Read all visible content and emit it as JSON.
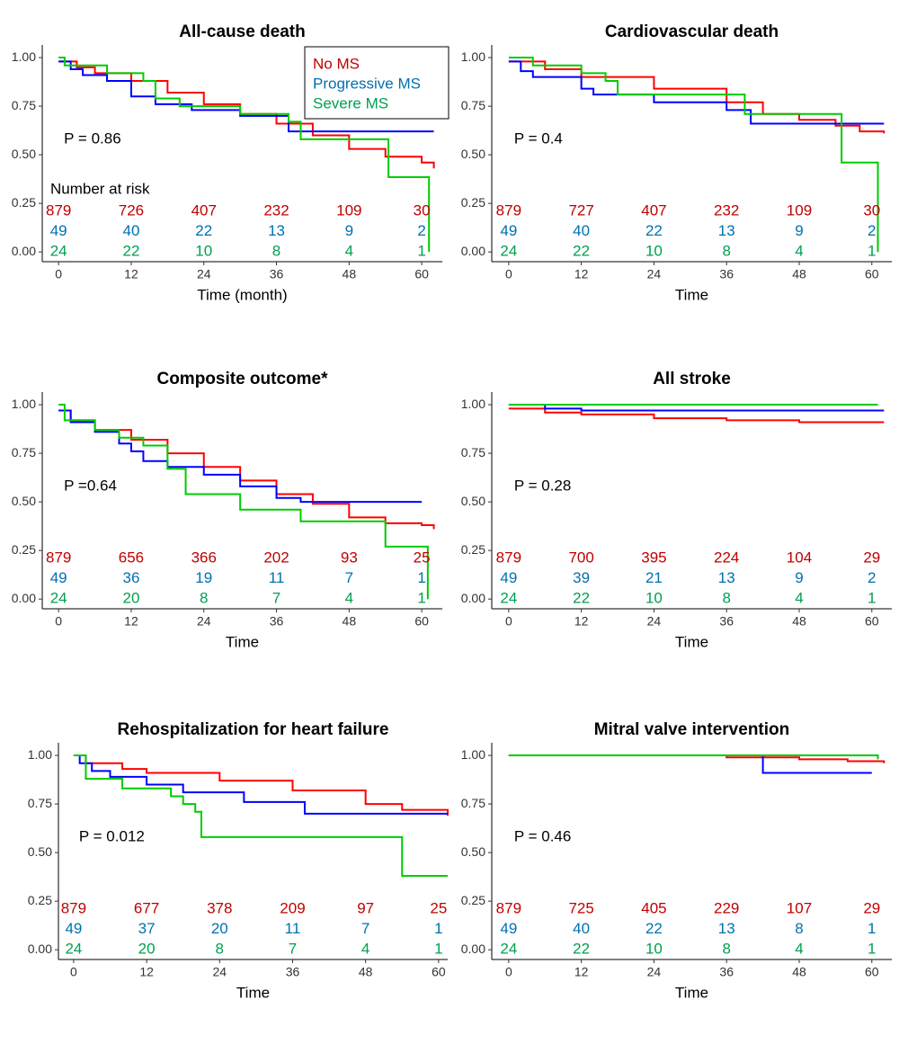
{
  "chart_data": [
    {
      "type": "step",
      "title": "All-cause death",
      "xlabel": "Time (month)",
      "p_text": "P = 0.86",
      "risk_title": "Number at risk",
      "legend": "top right",
      "xlim": [
        -2.7,
        63.4
      ],
      "ylim": [
        -0.05,
        1.065
      ],
      "xticks": [
        0,
        12,
        24,
        36,
        48,
        60
      ],
      "yticks": [
        {
          "value": 0,
          "label": "0.00"
        },
        0.25,
        {
          "value": 0.5,
          "label": "0.50"
        },
        0.75,
        {
          "value": 1,
          "label": "1.00"
        }
      ],
      "series": [
        {
          "name": "No MS",
          "color": "#ff0000",
          "label_color": "#c00000",
          "x": [
            0,
            3,
            6,
            12,
            18,
            24,
            30,
            36,
            42,
            48,
            54,
            60,
            62
          ],
          "values": [
            0.98,
            0.95,
            0.92,
            0.88,
            0.82,
            0.76,
            0.71,
            0.66,
            0.6,
            0.53,
            0.49,
            0.46,
            0.43
          ],
          "at_risk": [
            879,
            726,
            407,
            232,
            109,
            30
          ]
        },
        {
          "name": "Progressive MS",
          "color": "#0000ff",
          "label_color": "#0070b0",
          "x": [
            0,
            2,
            4,
            8,
            12,
            16,
            22,
            30,
            38,
            62
          ],
          "values": [
            0.98,
            0.94,
            0.91,
            0.88,
            0.8,
            0.76,
            0.73,
            0.7,
            0.62,
            0.62
          ],
          "at_risk": [
            49,
            40,
            22,
            13,
            9,
            2
          ]
        },
        {
          "name": "Severe MS",
          "color": "#00cc00",
          "label_color": "#00a050",
          "x": [
            0,
            1,
            8,
            14,
            16,
            20,
            30,
            38,
            40,
            54.5,
            61.2
          ],
          "values": [
            1,
            0.96,
            0.92,
            0.88,
            0.79,
            0.75,
            0.71,
            0.67,
            0.58,
            0.385,
            0
          ],
          "at_risk": [
            24,
            22,
            10,
            8,
            4,
            1
          ]
        }
      ]
    },
    {
      "type": "step",
      "title": "Cardiovascular death",
      "xlabel": "Time",
      "p_text": "P = 0.4",
      "xlim": [
        -2.8,
        63.3
      ],
      "ylim": [
        -0.05,
        1.065
      ],
      "xticks": [
        0,
        12,
        24,
        36,
        48,
        60
      ],
      "yticks": [
        {
          "value": 0,
          "label": "0.00"
        },
        0.25,
        {
          "value": 0.5,
          "label": "0.50"
        },
        0.75,
        {
          "value": 1,
          "label": "1.00"
        }
      ],
      "series": [
        {
          "color": "#ff0000",
          "label_color": "#c00000",
          "x": [
            0,
            6,
            12,
            24,
            36,
            42,
            48,
            54,
            58,
            62
          ],
          "values": [
            0.98,
            0.94,
            0.9,
            0.84,
            0.77,
            0.71,
            0.68,
            0.65,
            0.62,
            0.61
          ],
          "at_risk": [
            879,
            727,
            407,
            232,
            109,
            30
          ]
        },
        {
          "color": "#0000ff",
          "label_color": "#0070b0",
          "x": [
            0,
            2,
            4,
            12,
            14,
            24,
            36,
            40,
            62
          ],
          "values": [
            0.98,
            0.93,
            0.9,
            0.84,
            0.81,
            0.77,
            0.73,
            0.66,
            0.66
          ],
          "at_risk": [
            49,
            40,
            22,
            13,
            9,
            2
          ]
        },
        {
          "color": "#00cc00",
          "label_color": "#00a050",
          "x": [
            0,
            4,
            12,
            16,
            18,
            39,
            55,
            61
          ],
          "values": [
            1,
            0.96,
            0.92,
            0.88,
            0.81,
            0.71,
            0.46,
            0
          ],
          "at_risk": [
            24,
            22,
            10,
            8,
            4,
            1
          ]
        }
      ]
    },
    {
      "type": "step",
      "title": "Composite outcome*",
      "xlabel": "Time",
      "p_text": "P =0.64",
      "xlim": [
        -2.7,
        63.4
      ],
      "ylim": [
        -0.05,
        1.065
      ],
      "xticks": [
        0,
        12,
        24,
        36,
        48,
        60
      ],
      "yticks": [
        {
          "value": 0,
          "label": "0.00"
        },
        0.25,
        {
          "value": 0.5,
          "label": "0.50"
        },
        0.75,
        {
          "value": 1,
          "label": "1.00"
        }
      ],
      "series": [
        {
          "color": "#ff0000",
          "label_color": "#c00000",
          "x": [
            0,
            2,
            6,
            12,
            18,
            24,
            30,
            36,
            42,
            48,
            54,
            60,
            62
          ],
          "values": [
            0.97,
            0.92,
            0.87,
            0.82,
            0.75,
            0.68,
            0.61,
            0.54,
            0.49,
            0.42,
            0.39,
            0.38,
            0.36
          ],
          "at_risk": [
            879,
            656,
            366,
            202,
            93,
            25
          ]
        },
        {
          "color": "#0000ff",
          "label_color": "#0070b0",
          "x": [
            0,
            2,
            6,
            10,
            12,
            14,
            18,
            24,
            30,
            36,
            40,
            60
          ],
          "values": [
            0.97,
            0.91,
            0.86,
            0.8,
            0.76,
            0.71,
            0.68,
            0.64,
            0.58,
            0.52,
            0.5,
            0.5
          ],
          "at_risk": [
            49,
            36,
            19,
            11,
            7,
            1
          ]
        },
        {
          "color": "#00cc00",
          "label_color": "#00a050",
          "x": [
            0,
            1,
            6,
            10,
            14,
            18,
            21,
            30,
            40,
            54,
            61
          ],
          "values": [
            1,
            0.92,
            0.87,
            0.83,
            0.79,
            0.67,
            0.54,
            0.46,
            0.4,
            0.27,
            0
          ],
          "at_risk": [
            24,
            20,
            8,
            7,
            4,
            1
          ]
        }
      ]
    },
    {
      "type": "step",
      "title": "All stroke",
      "xlabel": "Time",
      "p_text": "P = 0.28",
      "xlim": [
        -2.8,
        63.3
      ],
      "ylim": [
        -0.05,
        1.065
      ],
      "xticks": [
        0,
        12,
        24,
        36,
        48,
        60
      ],
      "yticks": [
        {
          "value": 0,
          "label": "0.00"
        },
        0.25,
        {
          "value": 0.5,
          "label": "0.50"
        },
        0.75,
        {
          "value": 1,
          "label": "1.00"
        }
      ],
      "series": [
        {
          "color": "#ff0000",
          "label_color": "#c00000",
          "x": [
            0,
            6,
            12,
            24,
            36,
            48,
            62
          ],
          "values": [
            0.98,
            0.96,
            0.95,
            0.93,
            0.92,
            0.91,
            0.91
          ],
          "at_risk": [
            879,
            700,
            395,
            224,
            104,
            29
          ]
        },
        {
          "color": "#0000ff",
          "label_color": "#0070b0",
          "x": [
            0,
            6,
            12,
            62
          ],
          "values": [
            1,
            0.98,
            0.97,
            0.97
          ],
          "at_risk": [
            49,
            39,
            21,
            13,
            9,
            2
          ]
        },
        {
          "color": "#00cc00",
          "label_color": "#00a050",
          "x": [
            0,
            61
          ],
          "values": [
            1,
            1
          ],
          "at_risk": [
            24,
            22,
            10,
            8,
            4,
            1
          ]
        }
      ]
    },
    {
      "type": "step",
      "title": "Rehospitalization for heart failure",
      "xlabel": "Time",
      "p_text": "P = 0.012",
      "xlim": [
        -2.5,
        61.5
      ],
      "ylim": [
        -0.05,
        1.065
      ],
      "xticks": [
        0,
        12,
        24,
        36,
        48,
        60
      ],
      "yticks": [
        {
          "value": 0,
          "label": "0.00"
        },
        0.25,
        {
          "value": 0.5,
          "label": "0.50"
        },
        0.75,
        {
          "value": 1,
          "label": "1.00"
        }
      ],
      "series": [
        {
          "color": "#ff0000",
          "label_color": "#c00000",
          "x": [
            0,
            2,
            8,
            12,
            24,
            36,
            48,
            54,
            61.5
          ],
          "values": [
            1,
            0.96,
            0.93,
            0.91,
            0.87,
            0.82,
            0.75,
            0.72,
            0.69
          ],
          "at_risk": [
            879,
            677,
            378,
            209,
            97,
            25
          ]
        },
        {
          "color": "#0000ff",
          "label_color": "#0070b0",
          "x": [
            0,
            1,
            3,
            6,
            12,
            18,
            28,
            38,
            61.5
          ],
          "values": [
            1,
            0.96,
            0.92,
            0.89,
            0.85,
            0.81,
            0.76,
            0.7,
            0.7
          ],
          "at_risk": [
            49,
            37,
            20,
            11,
            7,
            1
          ]
        },
        {
          "color": "#00cc00",
          "label_color": "#00a050",
          "x": [
            0,
            2,
            8,
            16,
            18,
            20,
            21,
            53,
            54,
            61.5
          ],
          "values": [
            1,
            0.88,
            0.83,
            0.79,
            0.75,
            0.71,
            0.58,
            0.58,
            0.38,
            0.38
          ],
          "at_risk": [
            24,
            20,
            8,
            7,
            4,
            1
          ]
        }
      ]
    },
    {
      "type": "step",
      "title": "Mitral valve intervention",
      "xlabel": "Time",
      "p_text": "P = 0.46",
      "xlim": [
        -2.8,
        63.3
      ],
      "ylim": [
        -0.05,
        1.065
      ],
      "xticks": [
        0,
        12,
        24,
        36,
        48,
        60
      ],
      "yticks": [
        {
          "value": 0,
          "label": "0.00"
        },
        0.25,
        {
          "value": 0.5,
          "label": "0.50"
        },
        0.75,
        {
          "value": 1,
          "label": "1.00"
        }
      ],
      "series": [
        {
          "color": "#ff0000",
          "label_color": "#c00000",
          "x": [
            0,
            36,
            48,
            56,
            62
          ],
          "values": [
            1,
            0.99,
            0.98,
            0.97,
            0.96
          ],
          "at_risk": [
            879,
            725,
            405,
            229,
            107,
            29
          ]
        },
        {
          "color": "#0000ff",
          "label_color": "#0070b0",
          "x": [
            0,
            42,
            60
          ],
          "values": [
            1,
            0.91,
            0.91
          ],
          "at_risk": [
            49,
            40,
            22,
            13,
            8,
            1
          ]
        },
        {
          "color": "#00cc00",
          "label_color": "#00a050",
          "x": [
            0,
            61
          ],
          "values": [
            1,
            0.98
          ],
          "at_risk": [
            24,
            22,
            10,
            8,
            4,
            1
          ]
        }
      ]
    }
  ]
}
